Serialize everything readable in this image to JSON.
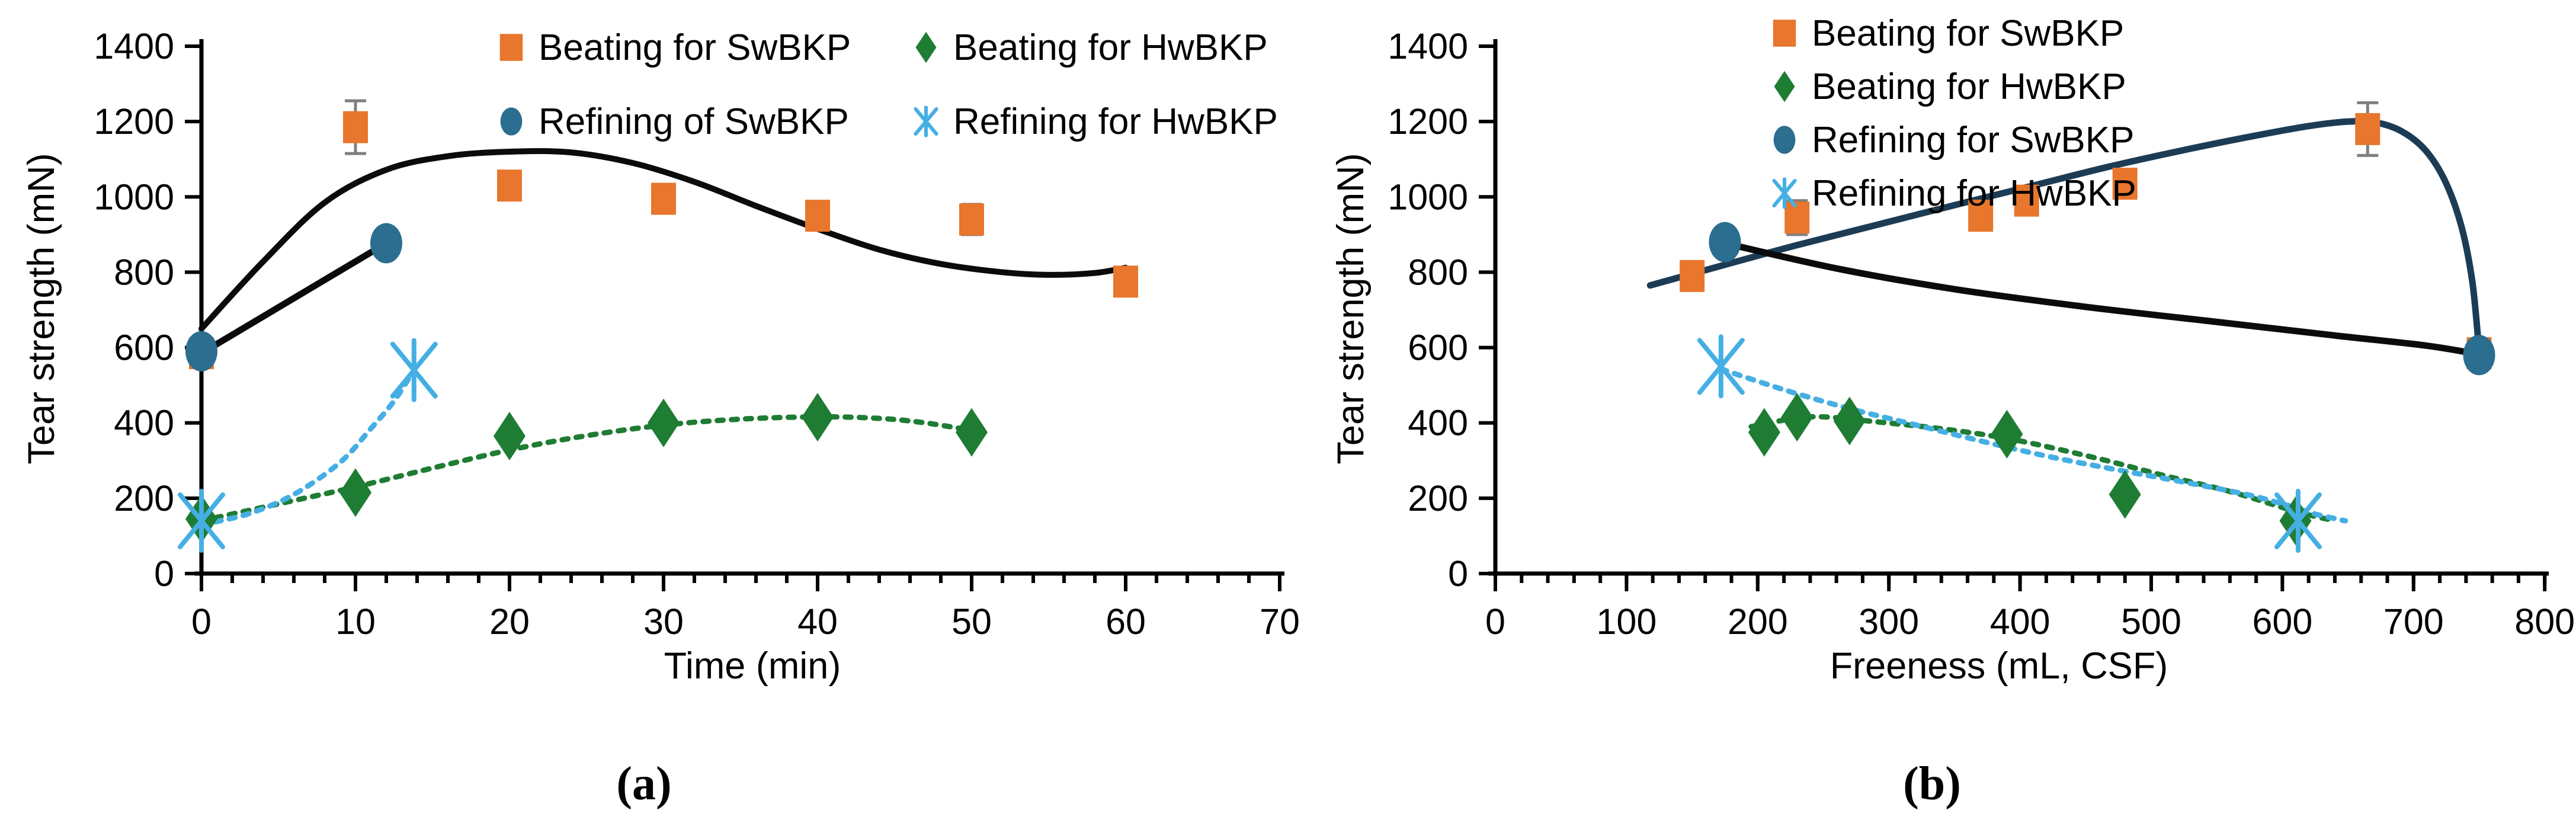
{
  "figure": {
    "background": "#ffffff",
    "colors": {
      "orange": "#E8762C",
      "green": "#1E7C33",
      "steel_blue": "#2B6E8F",
      "sky_blue": "#45AFE4",
      "black": "#0B0B0B",
      "navy": "#1C3C55",
      "error_bar_gray": "#7F7F7F"
    }
  },
  "chart_data": [
    {
      "id": "a",
      "type": "scatter",
      "caption": "(a)",
      "xlabel": "Time (min)",
      "ylabel": "Tear strength (mN)",
      "xlim": [
        0,
        70
      ],
      "ylim": [
        0,
        1400
      ],
      "xticks": [
        0,
        10,
        20,
        30,
        40,
        50,
        60,
        70
      ],
      "xminor_step": 2,
      "yticks": [
        0,
        200,
        400,
        600,
        800,
        1000,
        1200,
        1400
      ],
      "grid": false,
      "legend_position": "top, two columns",
      "series": [
        {
          "name": "Beating for SwBKP",
          "marker": "square",
          "color": "#E8762C",
          "points": [
            [
              0,
              585
            ],
            [
              10,
              1185
            ],
            [
              20,
              1030
            ],
            [
              30,
              995
            ],
            [
              40,
              950
            ],
            [
              50,
              940
            ],
            [
              60,
              775
            ]
          ],
          "errors": [
            0,
            70,
            0,
            0,
            0,
            40,
            0
          ]
        },
        {
          "name": "Refining of SwBKP",
          "marker": "circle",
          "color": "#2B6E8F",
          "points": [
            [
              0,
              590
            ],
            [
              12,
              877
            ]
          ],
          "errors": [
            0,
            0
          ]
        },
        {
          "name": "Beating for HwBKP",
          "marker": "diamond",
          "color": "#1E7C33",
          "points": [
            [
              0,
              145
            ],
            [
              10,
              215
            ],
            [
              20,
              365
            ],
            [
              30,
              400
            ],
            [
              40,
              415
            ],
            [
              50,
              375
            ]
          ],
          "errors": [
            0,
            0,
            0,
            0,
            0,
            0
          ]
        },
        {
          "name": "Refining for HwBKP",
          "marker": "xstar",
          "color": "#45AFE4",
          "points": [
            [
              0,
              140
            ],
            [
              13.8,
              540
            ]
          ],
          "errors": [
            0,
            0
          ]
        }
      ],
      "trends": [
        {
          "series": "Beating for SwBKP",
          "style": "solid",
          "color": "#0B0B0B",
          "width": 10,
          "points": [
            [
              0,
              650
            ],
            [
              4,
              828
            ],
            [
              8,
              985
            ],
            [
              12,
              1072
            ],
            [
              16,
              1108
            ],
            [
              20,
              1120
            ],
            [
              24,
              1118
            ],
            [
              28,
              1090
            ],
            [
              32,
              1040
            ],
            [
              36,
              976
            ],
            [
              40,
              915
            ],
            [
              44,
              860
            ],
            [
              48,
              822
            ],
            [
              52,
              800
            ],
            [
              55,
              793
            ],
            [
              58,
              798
            ],
            [
              60,
              812
            ]
          ]
        },
        {
          "series": "Refining of SwBKP",
          "style": "solid",
          "color": "#0B0B0B",
          "width": 11,
          "points": [
            [
              0,
              585
            ],
            [
              12,
              877
            ]
          ]
        },
        {
          "series": "Beating for HwBKP",
          "style": "dotted",
          "color": "#1E7C33",
          "width": 9,
          "points": [
            [
              0,
              140
            ],
            [
              5,
              185
            ],
            [
              10,
              230
            ],
            [
              15,
              280
            ],
            [
              20,
              328
            ],
            [
              25,
              366
            ],
            [
              30,
              394
            ],
            [
              35,
              410
            ],
            [
              40,
              416
            ],
            [
              44,
              412
            ],
            [
              47,
              400
            ],
            [
              50,
              380
            ]
          ]
        },
        {
          "series": "Refining for HwBKP",
          "style": "dotted",
          "color": "#45AFE4",
          "width": 9,
          "points": [
            [
              0,
              130
            ],
            [
              3,
              158
            ],
            [
              6,
              210
            ],
            [
              9,
              295
            ],
            [
              11,
              385
            ],
            [
              12.5,
              458
            ],
            [
              13.8,
              540
            ]
          ]
        }
      ]
    },
    {
      "id": "b",
      "type": "scatter",
      "caption": "(b)",
      "xlabel": "Freeness (mL, CSF)",
      "ylabel": "Tear strength (mN)",
      "xlim": [
        0,
        800
      ],
      "ylim": [
        0,
        1400
      ],
      "xticks": [
        0,
        100,
        200,
        300,
        400,
        500,
        600,
        700,
        800
      ],
      "xminor_step": 20,
      "yticks": [
        0,
        200,
        400,
        600,
        800,
        1000,
        1200,
        1400
      ],
      "grid": false,
      "legend_position": "top left, single column",
      "series": [
        {
          "name": "Beating for SwBKP",
          "marker": "square",
          "color": "#E8762C",
          "points": [
            [
              150,
              790
            ],
            [
              230,
              945
            ],
            [
              370,
              950
            ],
            [
              405,
              990
            ],
            [
              480,
              1035
            ],
            [
              665,
              1180
            ],
            [
              750,
              585
            ]
          ],
          "errors": [
            0,
            45,
            0,
            0,
            0,
            70,
            0
          ]
        },
        {
          "name": "Refining for SwBKP",
          "marker": "circle",
          "color": "#2B6E8F",
          "points": [
            [
              175,
              880
            ],
            [
              750,
              580
            ]
          ],
          "errors": [
            0,
            0
          ]
        },
        {
          "name": "Beating for HwBKP",
          "marker": "diamond",
          "color": "#1E7C33",
          "points": [
            [
              205,
              375
            ],
            [
              230,
              415
            ],
            [
              270,
              405
            ],
            [
              390,
              370
            ],
            [
              480,
              210
            ],
            [
              610,
              140
            ]
          ],
          "errors": [
            0,
            0,
            0,
            0,
            0,
            0
          ]
        },
        {
          "name": "Refining for HwBKP",
          "marker": "xstar",
          "color": "#45AFE4",
          "points": [
            [
              172,
              550
            ],
            [
              612,
              140
            ]
          ],
          "errors": [
            0,
            0
          ]
        }
      ],
      "trends": [
        {
          "series": "Beating for SwBKP",
          "style": "solid",
          "color": "#1C3C55",
          "width": 11,
          "points": [
            [
              118,
              765
            ],
            [
              170,
              815
            ],
            [
              230,
              872
            ],
            [
              290,
              925
            ],
            [
              350,
              978
            ],
            [
              410,
              1030
            ],
            [
              470,
              1082
            ],
            [
              530,
              1128
            ],
            [
              580,
              1163
            ],
            [
              620,
              1188
            ],
            [
              650,
              1200
            ],
            [
              672,
              1197
            ],
            [
              692,
              1172
            ],
            [
              710,
              1120
            ],
            [
              725,
              1035
            ],
            [
              737,
              915
            ],
            [
              745,
              770
            ],
            [
              750,
              590
            ]
          ]
        },
        {
          "series": "Refining for SwBKP",
          "style": "solid",
          "color": "#0B0B0B",
          "width": 11,
          "points": [
            [
              175,
              877
            ],
            [
              260,
              810
            ],
            [
              350,
              755
            ],
            [
              450,
              708
            ],
            [
              550,
              668
            ],
            [
              640,
              632
            ],
            [
              710,
              605
            ],
            [
              750,
              582
            ]
          ]
        },
        {
          "series": "Beating for HwBKP",
          "style": "dotted",
          "color": "#1E7C33",
          "width": 9,
          "points": [
            [
              195,
              390
            ],
            [
              240,
              416
            ],
            [
              290,
              403
            ],
            [
              350,
              380
            ],
            [
              400,
              352
            ],
            [
              460,
              305
            ],
            [
              510,
              260
            ],
            [
              560,
              218
            ],
            [
              610,
              165
            ],
            [
              640,
              140
            ]
          ]
        },
        {
          "series": "Refining for HwBKP",
          "style": "dotted",
          "color": "#45AFE4",
          "width": 9,
          "points": [
            [
              172,
              543
            ],
            [
              220,
              488
            ],
            [
              270,
              438
            ],
            [
              320,
              395
            ],
            [
              370,
              352
            ],
            [
              420,
              312
            ],
            [
              470,
              278
            ],
            [
              520,
              246
            ],
            [
              570,
              212
            ],
            [
              600,
              185
            ],
            [
              625,
              158
            ],
            [
              648,
              140
            ]
          ]
        }
      ]
    }
  ]
}
